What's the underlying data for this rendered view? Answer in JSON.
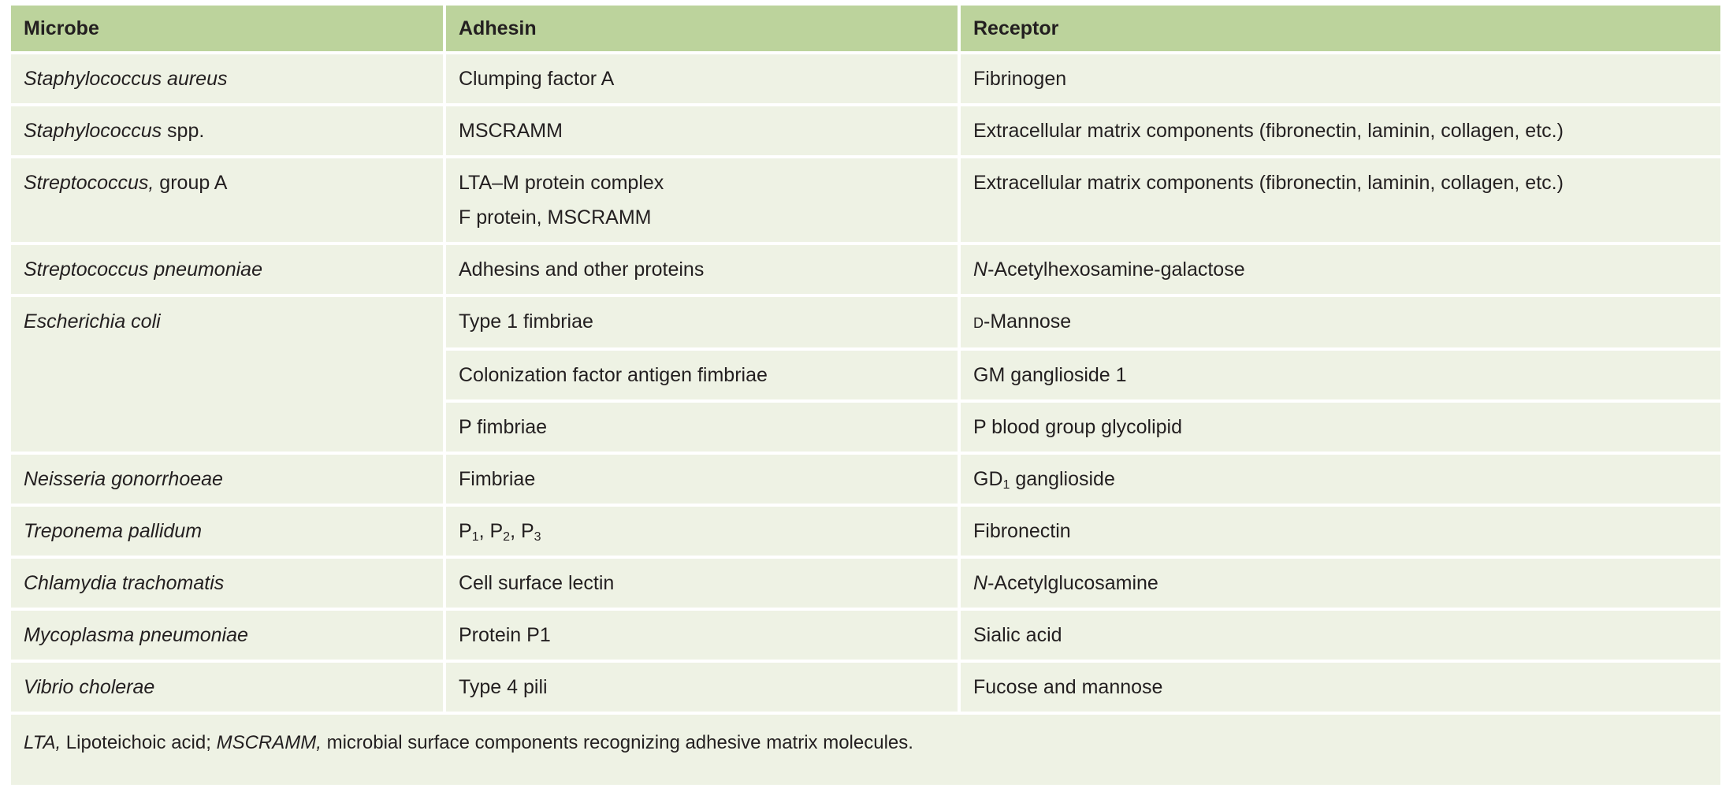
{
  "table": {
    "header": [
      "Microbe",
      "Adhesin",
      "Receptor"
    ],
    "rows": [
      {
        "microbe": [
          [
            {
              "text": "Staphylococcus aureus",
              "style": "italic"
            }
          ]
        ],
        "entries": [
          {
            "adhesin": [
              [
                "Clumping factor A"
              ]
            ],
            "receptor": [
              [
                "Fibrinogen"
              ]
            ]
          }
        ]
      },
      {
        "microbe": [
          [
            {
              "text": "Staphylococcus",
              "style": "italic"
            },
            " spp."
          ]
        ],
        "entries": [
          {
            "adhesin": [
              [
                "MSCRAMM"
              ]
            ],
            "receptor": [
              [
                "Extracellular matrix components (fibronectin, laminin, collagen, etc.)"
              ]
            ]
          }
        ]
      },
      {
        "microbe": [
          [
            {
              "text": "Streptococcus,",
              "style": "italic"
            },
            " group A"
          ]
        ],
        "entries": [
          {
            "adhesin": [
              [
                "LTA–M protein complex"
              ],
              [
                "F protein, MSCRAMM"
              ]
            ],
            "receptor": [
              [
                "Extracellular matrix components (fibronectin, laminin, collagen, etc.)"
              ]
            ]
          }
        ]
      },
      {
        "microbe": [
          [
            {
              "text": "Streptococcus pneumoniae",
              "style": "italic"
            }
          ]
        ],
        "entries": [
          {
            "adhesin": [
              [
                "Adhesins and other proteins"
              ]
            ],
            "receptor": [
              [
                {
                  "text": "N",
                  "style": "italic"
                },
                "-Acetylhexosamine-galactose"
              ]
            ]
          }
        ]
      },
      {
        "microbe": [
          [
            {
              "text": "Escherichia coli",
              "style": "italic"
            }
          ]
        ],
        "entries": [
          {
            "adhesin": [
              [
                "Type 1 fimbriae"
              ]
            ],
            "receptor": [
              [
                {
                  "text": "D",
                  "style": "smallcaps"
                },
                "-Mannose"
              ]
            ]
          },
          {
            "adhesin": [
              [
                "Colonization factor antigen fimbriae"
              ]
            ],
            "receptor": [
              [
                "GM ganglioside 1"
              ]
            ]
          },
          {
            "adhesin": [
              [
                "P fimbriae"
              ]
            ],
            "receptor": [
              [
                "P blood group glycolipid"
              ]
            ]
          }
        ]
      },
      {
        "microbe": [
          [
            {
              "text": "Neisseria gonorrhoeae",
              "style": "italic"
            }
          ]
        ],
        "entries": [
          {
            "adhesin": [
              [
                "Fimbriae"
              ]
            ],
            "receptor": [
              [
                "GD",
                {
                  "text": "1",
                  "style": "sub"
                },
                " ganglioside"
              ]
            ]
          }
        ]
      },
      {
        "microbe": [
          [
            {
              "text": "Treponema pallidum",
              "style": "italic"
            }
          ]
        ],
        "entries": [
          {
            "adhesin": [
              [
                "P",
                {
                  "text": "1",
                  "style": "sub"
                },
                ", P",
                {
                  "text": "2",
                  "style": "sub"
                },
                ", P",
                {
                  "text": "3",
                  "style": "sub"
                }
              ]
            ],
            "receptor": [
              [
                "Fibronectin"
              ]
            ]
          }
        ]
      },
      {
        "microbe": [
          [
            {
              "text": "Chlamydia trachomatis",
              "style": "italic"
            }
          ]
        ],
        "entries": [
          {
            "adhesin": [
              [
                "Cell surface lectin"
              ]
            ],
            "receptor": [
              [
                {
                  "text": "N",
                  "style": "italic"
                },
                "-Acetylglucosamine"
              ]
            ]
          }
        ]
      },
      {
        "microbe": [
          [
            {
              "text": "Mycoplasma pneumoniae",
              "style": "italic"
            }
          ]
        ],
        "entries": [
          {
            "adhesin": [
              [
                "Protein P1"
              ]
            ],
            "receptor": [
              [
                "Sialic acid"
              ]
            ]
          }
        ]
      },
      {
        "microbe": [
          [
            {
              "text": "Vibrio cholerae",
              "style": "italic"
            }
          ]
        ],
        "entries": [
          {
            "adhesin": [
              [
                "Type 4 pili"
              ]
            ],
            "receptor": [
              [
                "Fucose and mannose"
              ]
            ]
          }
        ]
      }
    ],
    "footnote": [
      [
        {
          "text": "LTA,",
          "style": "italic"
        },
        " Lipoteichoic acid; ",
        {
          "text": "MSCRAMM,",
          "style": "italic"
        },
        " microbial surface components recognizing adhesive matrix molecules."
      ]
    ]
  }
}
